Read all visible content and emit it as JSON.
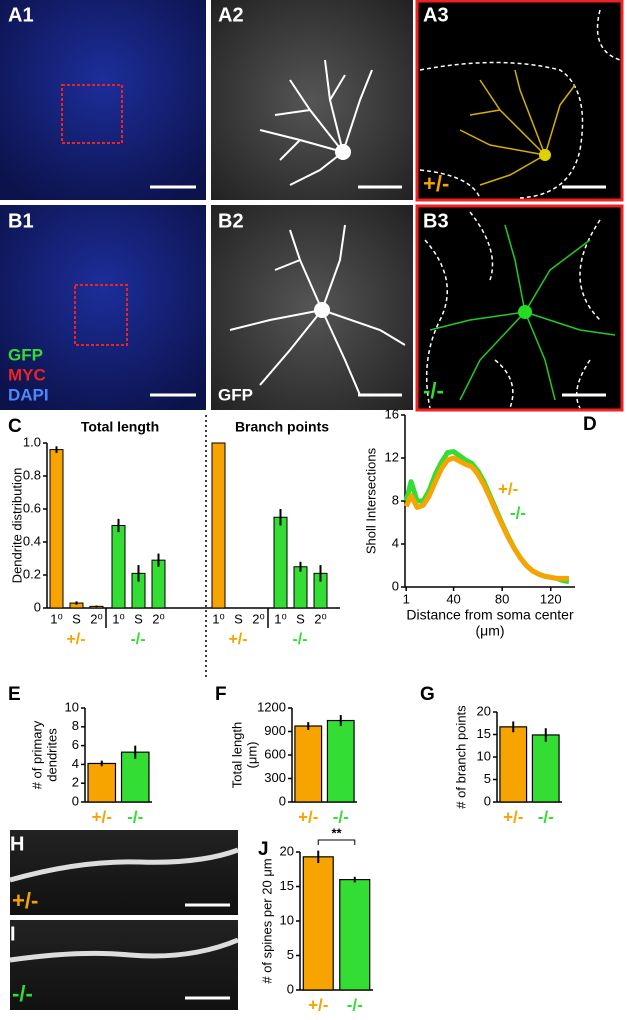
{
  "images": [
    {
      "label": "A1"
    },
    {
      "label": "A2"
    },
    {
      "label": "A3",
      "genotype": "+/-"
    },
    {
      "label": "B1",
      "stains": [
        "GFP",
        "MYC",
        "DAPI"
      ]
    },
    {
      "label": "B2",
      "stain": "GFP"
    },
    {
      "label": "B3",
      "genotype": "-/-"
    },
    {
      "label": "H",
      "genotype": "+/-"
    },
    {
      "label": "I",
      "genotype": "-/-"
    }
  ],
  "chart_data": [
    {
      "type": "grouped-bar",
      "panel": "C",
      "ylabel": "Dendrite distribution",
      "ylim": [
        0,
        1
      ],
      "yticks": [
        0,
        0.2,
        0.4,
        0.6,
        0.8,
        {
          "value": 1,
          "label": "1.0"
        }
      ],
      "groups": [
        {
          "title": "Total length",
          "series": [
            {
              "name": "+/-",
              "color": "#f7a400",
              "categories": [
                "1⁰",
                "S",
                "2⁰"
              ],
              "values": [
                0.96,
                0.03,
                0.01
              ],
              "errors": [
                0.02,
                0.01,
                0.005
              ]
            },
            {
              "name": "-/-",
              "color": "#33dd33",
              "categories": [
                "1⁰",
                "S",
                "2⁰"
              ],
              "values": [
                0.5,
                0.21,
                0.29
              ],
              "errors": [
                0.04,
                0.05,
                0.04
              ]
            }
          ]
        },
        {
          "title": "Branch points",
          "series": [
            {
              "name": "+/-",
              "color": "#f7a400",
              "categories": [
                "1⁰",
                "S",
                "2⁰"
              ],
              "values": [
                1,
                0,
                0
              ],
              "errors": [
                0,
                0,
                0
              ]
            },
            {
              "name": "-/-",
              "color": "#33dd33",
              "categories": [
                "1⁰",
                "S",
                "2⁰"
              ],
              "values": [
                0.55,
                0.25,
                0.21
              ],
              "errors": [
                0.05,
                0.03,
                0.05
              ]
            }
          ]
        }
      ]
    },
    {
      "type": "line",
      "panel": "D",
      "ylabel": "Sholl Intersections",
      "xlabel": "Distance from soma center",
      "xlabel_unit": "(μm)",
      "xlim": [
        0,
        140
      ],
      "xticks": [
        1,
        40,
        80,
        120
      ],
      "ylim": [
        0,
        16
      ],
      "yticks": [
        0,
        4,
        8,
        12,
        16
      ],
      "x": [
        1,
        5,
        10,
        15,
        20,
        25,
        30,
        35,
        40,
        45,
        50,
        55,
        60,
        65,
        70,
        75,
        80,
        85,
        90,
        95,
        100,
        105,
        110,
        115,
        120,
        125,
        130,
        135
      ],
      "series": [
        {
          "name": "-/-",
          "color": "#33dd33",
          "values": [
            8.0,
            9.8,
            8.0,
            8.0,
            9.0,
            10.5,
            11.6,
            12.5,
            12.6,
            12.2,
            11.8,
            11.5,
            10.8,
            9.8,
            8.5,
            7.2,
            5.9,
            4.7,
            3.6,
            2.7,
            2.0,
            1.5,
            1.2,
            1.0,
            0.9,
            0.8,
            0.6,
            0.5
          ]
        },
        {
          "name": "+/-",
          "color": "#f7a400",
          "values": [
            7.5,
            8.5,
            7.4,
            7.6,
            8.5,
            9.8,
            11.0,
            11.8,
            12.0,
            11.7,
            11.4,
            11.2,
            10.5,
            9.5,
            8.3,
            7.0,
            5.8,
            4.6,
            3.6,
            2.7,
            2.0,
            1.5,
            1.2,
            1.0,
            0.9,
            0.8,
            0.8,
            0.8
          ]
        }
      ]
    },
    {
      "type": "bar",
      "panel": "E",
      "ylabel": "# of primary",
      "ylabel_unit": "dendrites",
      "ylim": [
        0,
        10
      ],
      "yticks": [
        0,
        2,
        4,
        6,
        8,
        10
      ],
      "categories": [
        "+/-",
        "-/-"
      ],
      "colors": [
        "#f7a400",
        "#33dd33"
      ],
      "values": [
        4.1,
        5.3
      ],
      "errors": [
        0.3,
        0.7
      ]
    },
    {
      "type": "bar",
      "panel": "F",
      "ylabel": "Total length",
      "ylabel_unit": "(μm)",
      "ylim": [
        0,
        1200
      ],
      "yticks": [
        0,
        300,
        600,
        900,
        1200
      ],
      "categories": [
        "+/-",
        "-/-"
      ],
      "colors": [
        "#f7a400",
        "#33dd33"
      ],
      "values": [
        970,
        1040
      ],
      "errors": [
        50,
        70
      ]
    },
    {
      "type": "bar",
      "panel": "G",
      "ylabel": "# of branch points",
      "ylim": [
        0,
        20
      ],
      "yticks": [
        0,
        5,
        10,
        15,
        20
      ],
      "categories": [
        "+/-",
        "-/-"
      ],
      "colors": [
        "#f7a400",
        "#33dd33"
      ],
      "values": [
        16.7,
        14.9
      ],
      "errors": [
        1.2,
        1.5
      ]
    },
    {
      "type": "bar",
      "panel": "J",
      "ylabel": "# of spines per 20 μm",
      "annotation": "**",
      "ylim": [
        0,
        20
      ],
      "yticks": [
        0,
        5,
        10,
        15,
        20
      ],
      "categories": [
        "+/-",
        "-/-"
      ],
      "colors": [
        "#f7a400",
        "#33dd33"
      ],
      "values": [
        19.3,
        16.0
      ],
      "errors": [
        0.9,
        0.4
      ]
    }
  ]
}
